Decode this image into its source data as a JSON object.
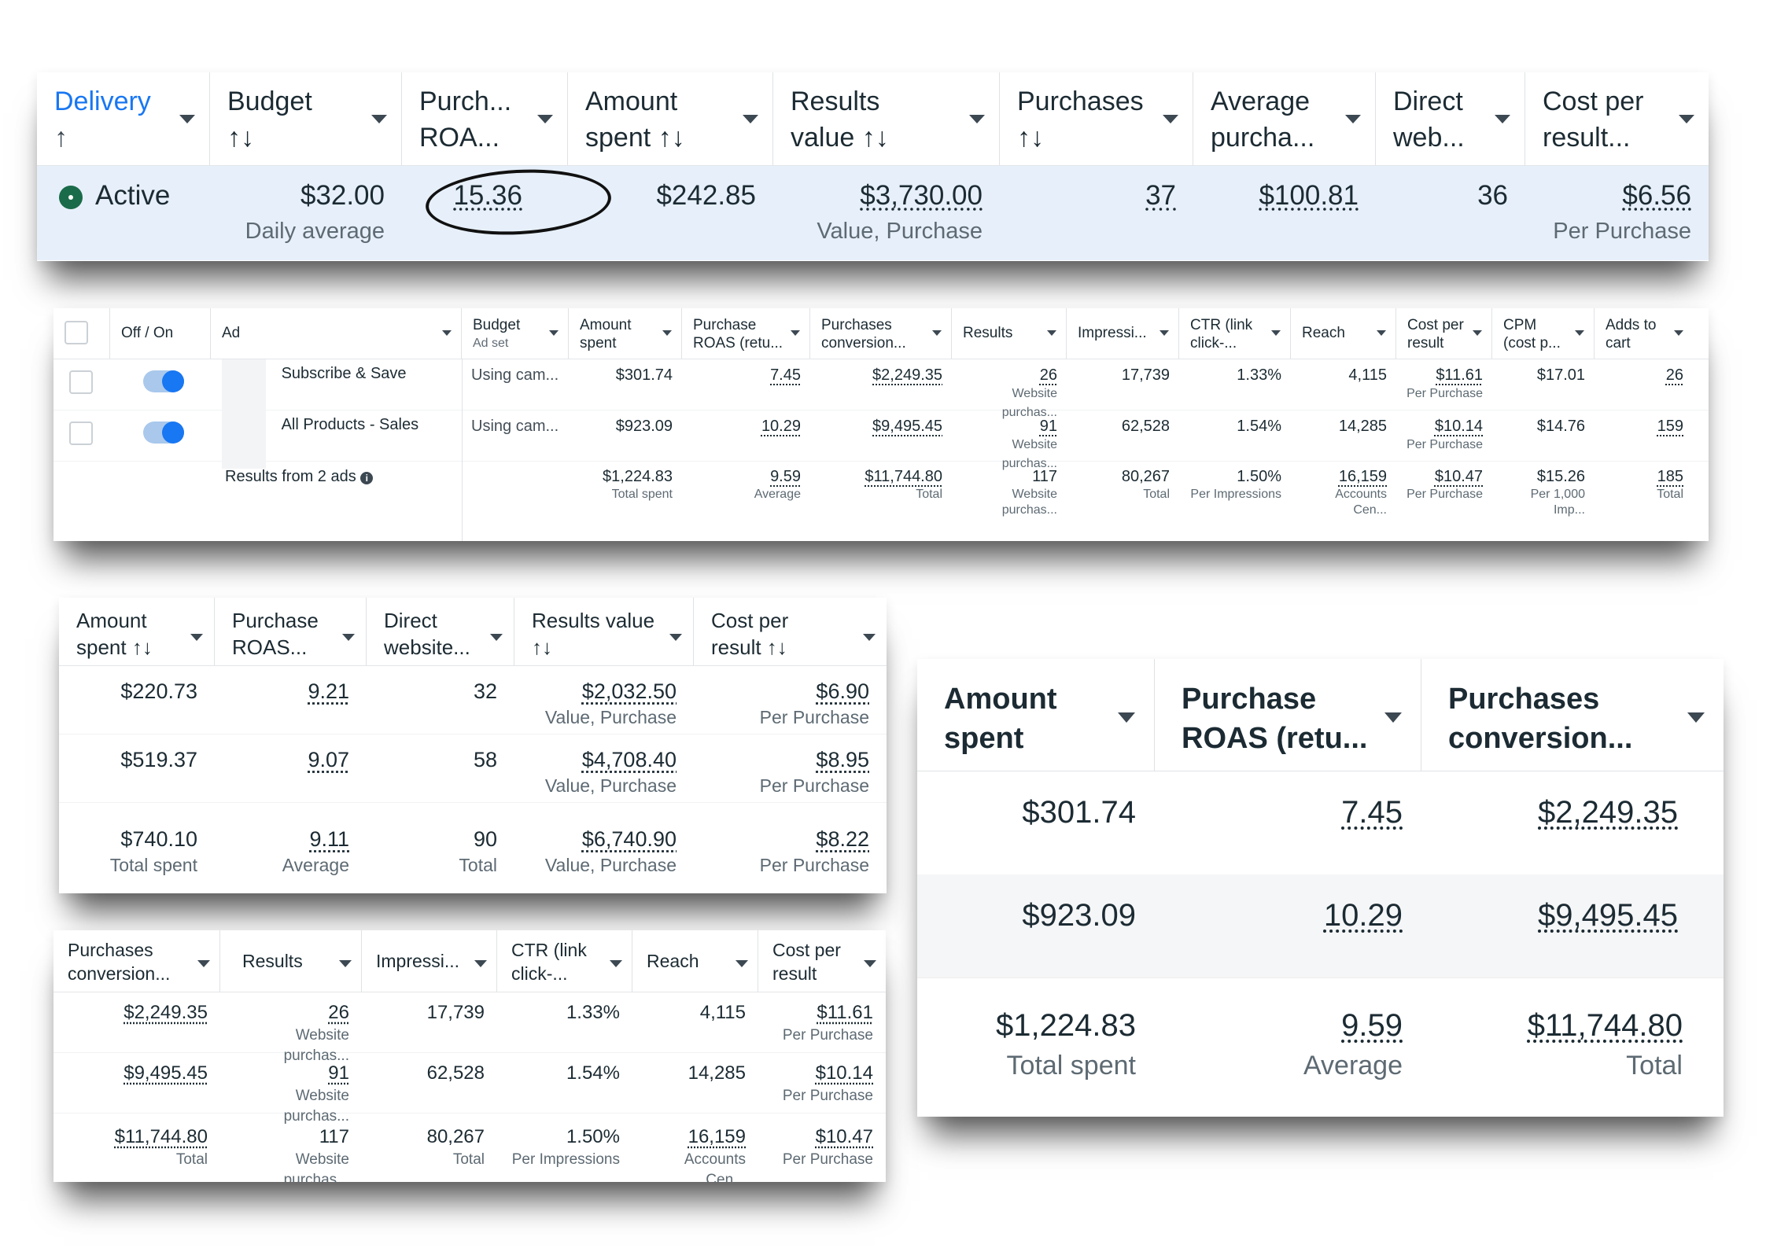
{
  "panel1": {
    "headers": [
      {
        "label": "Delivery",
        "arrow": "↑",
        "accent": true
      },
      {
        "label": "Budget",
        "arrow": "↑↓"
      },
      {
        "label": "Purch...",
        "label2": "ROA..."
      },
      {
        "label": "Amount",
        "label2": "spent ↑↓"
      },
      {
        "label": "Results",
        "label2": "value ↑↓"
      },
      {
        "label": "Purchases",
        "arrow": "↑↓"
      },
      {
        "label": "Average",
        "label2": "purcha..."
      },
      {
        "label": "Direct",
        "label2": "web..."
      },
      {
        "label": "Cost per",
        "label2": "result..."
      }
    ],
    "row": {
      "status": "Active",
      "budget": "$32.00",
      "budget_sub": "Daily average",
      "roas": "15.36",
      "amount_spent": "$242.85",
      "results_value": "$3,730.00",
      "results_value_sub": "Value, Purchase",
      "purchases": "37",
      "average_purchase": "$100.81",
      "direct_web": "36",
      "cost_per_result": "$6.56",
      "cost_per_result_sub": "Per Purchase"
    },
    "accent_color": "#1877f2",
    "row_bg": "#e7f0fa"
  },
  "panel2": {
    "headers": {
      "off_on": "Off / On",
      "ad": "Ad",
      "budget": "Budget",
      "budget_sub": "Ad set",
      "amount_spent": [
        "Amount",
        "spent"
      ],
      "purchase_roas": [
        "Purchase",
        "ROAS (retu..."
      ],
      "purchases_conversion": [
        "Purchases",
        "conversion..."
      ],
      "results": "Results",
      "impressions": "Impressi...",
      "ctr": [
        "CTR (link",
        "click-..."
      ],
      "reach": "Reach",
      "cost_per_result": [
        "Cost per",
        "result"
      ],
      "cpm": [
        "CPM",
        "(cost p..."
      ],
      "adds_to_cart": [
        "Adds to",
        "cart"
      ]
    },
    "rows": [
      {
        "ad": "Subscribe & Save",
        "budget": "Using cam...",
        "amount_spent": "$301.74",
        "roas": "7.45",
        "conv": "$2,249.35",
        "results": "26",
        "results_sub": "Website purchas...",
        "impressions": "17,739",
        "ctr": "1.33%",
        "reach": "4,115",
        "cpr": "$11.61",
        "cpr_sub": "Per Purchase",
        "cpm": "$17.01",
        "atc": "26"
      },
      {
        "ad": "All Products - Sales",
        "budget": "Using cam...",
        "amount_spent": "$923.09",
        "roas": "10.29",
        "conv": "$9,495.45",
        "results": "91",
        "results_sub": "Website purchas...",
        "impressions": "62,528",
        "ctr": "1.54%",
        "reach": "14,285",
        "cpr": "$10.14",
        "cpr_sub": "Per Purchase",
        "cpm": "$14.76",
        "atc": "159"
      }
    ],
    "totals": {
      "label": "Results from 2 ads",
      "amount_spent": "$1,224.83",
      "amount_spent_sub": "Total spent",
      "roas": "9.59",
      "roas_sub": "Average",
      "conv": "$11,744.80",
      "conv_sub": "Total",
      "results": "117",
      "results_sub": "Website purchas...",
      "impressions": "80,267",
      "impressions_sub": "Total",
      "ctr": "1.50%",
      "ctr_sub": "Per Impressions",
      "reach": "16,159",
      "reach_sub": "Accounts Cen...",
      "cpr": "$10.47",
      "cpr_sub": "Per Purchase",
      "cpm": "$15.26",
      "cpm_sub": "Per 1,000 Imp...",
      "atc": "185",
      "atc_sub": "Total"
    },
    "toggle_color": "#1877f2"
  },
  "panel3": {
    "headers": [
      [
        "Amount",
        "spent ↑↓"
      ],
      [
        "Purchase",
        "ROAS..."
      ],
      [
        "Direct",
        "website..."
      ],
      [
        "Results value",
        "↑↓"
      ],
      [
        "Cost per",
        "result ↑↓"
      ]
    ],
    "rows": [
      {
        "amount_spent": "$220.73",
        "roas": "9.21",
        "direct": "32",
        "results_value": "$2,032.50",
        "results_value_sub": "Value, Purchase",
        "cpr": "$6.90",
        "cpr_sub": "Per Purchase"
      },
      {
        "amount_spent": "$519.37",
        "roas": "9.07",
        "direct": "58",
        "results_value": "$4,708.40",
        "results_value_sub": "Value, Purchase",
        "cpr": "$8.95",
        "cpr_sub": "Per Purchase"
      }
    ],
    "totals": {
      "amount_spent": "$740.10",
      "amount_spent_sub": "Total spent",
      "roas": "9.11",
      "roas_sub": "Average",
      "direct": "90",
      "direct_sub": "Total",
      "results_value": "$6,740.90",
      "results_value_sub": "Value, Purchase",
      "cpr": "$8.22",
      "cpr_sub": "Per Purchase"
    }
  },
  "panel4": {
    "headers": [
      [
        "Purchases",
        "conversion..."
      ],
      [
        "Results"
      ],
      [
        "Impressi..."
      ],
      [
        "CTR (link",
        "click-..."
      ],
      [
        "Reach"
      ],
      [
        "Cost per",
        "result"
      ]
    ],
    "rows": [
      {
        "conv": "$2,249.35",
        "results": "26",
        "results_sub": "Website purchas...",
        "impressions": "17,739",
        "ctr": "1.33%",
        "reach": "4,115",
        "cpr": "$11.61",
        "cpr_sub": "Per Purchase"
      },
      {
        "conv": "$9,495.45",
        "results": "91",
        "results_sub": "Website purchas...",
        "impressions": "62,528",
        "ctr": "1.54%",
        "reach": "14,285",
        "cpr": "$10.14",
        "cpr_sub": "Per Purchase"
      }
    ],
    "totals": {
      "conv": "$11,744.80",
      "conv_sub": "Total",
      "results": "117",
      "results_sub": "Website purchas...",
      "impressions": "80,267",
      "impressions_sub": "Total",
      "ctr": "1.50%",
      "ctr_sub": "Per Impressions",
      "reach": "16,159",
      "reach_sub": "Accounts Cen...",
      "cpr": "$10.47",
      "cpr_sub": "Per Purchase"
    }
  },
  "panel5": {
    "headers": [
      [
        "Amount",
        "spent"
      ],
      [
        "Purchase",
        "ROAS (retu..."
      ],
      [
        "Purchases",
        "conversion..."
      ]
    ],
    "rows": [
      {
        "amount_spent": "$301.74",
        "roas": "7.45",
        "conv": "$2,249.35"
      },
      {
        "amount_spent": "$923.09",
        "roas": "10.29",
        "conv": "$9,495.45"
      }
    ],
    "totals": {
      "amount_spent": "$1,224.83",
      "amount_spent_sub": "Total spent",
      "roas": "9.59",
      "roas_sub": "Average",
      "conv": "$11,744.80",
      "conv_sub": "Total"
    }
  }
}
